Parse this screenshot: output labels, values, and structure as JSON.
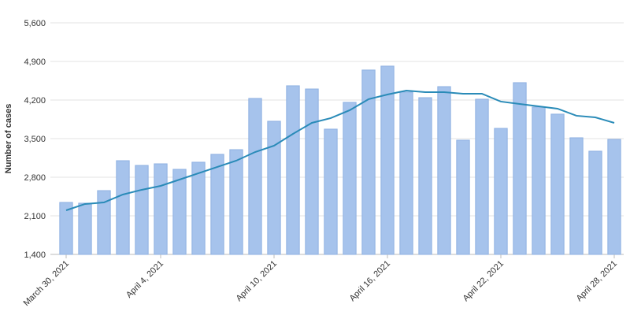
{
  "chart_data": {
    "type": "bar",
    "y_label": "Number of cases",
    "categories": [
      "March 30, 2021",
      null,
      null,
      null,
      null,
      "April 4, 2021",
      null,
      null,
      null,
      null,
      null,
      "April 10, 2021",
      null,
      null,
      null,
      null,
      null,
      "April 16, 2021",
      null,
      null,
      null,
      null,
      null,
      "April 22, 2021",
      null,
      null,
      null,
      null,
      null,
      "April 28, 2021"
    ],
    "series": [
      {
        "type": "bar",
        "color": "#a6c3ec",
        "values": [
          2343,
          2329,
          2557,
          3100,
          3014,
          3043,
          2943,
          3072,
          3215,
          3300,
          4229,
          3815,
          4458,
          4400,
          3672,
          4158,
          4744,
          4815,
          4344,
          4243,
          4443,
          3472,
          4215,
          3686,
          4515,
          4072,
          3944,
          3515,
          3272,
          3486
        ]
      },
      {
        "type": "line",
        "color": "#2a8bb8",
        "values": [
          2200,
          2315,
          2343,
          2486,
          2572,
          2643,
          2757,
          2872,
          2986,
          3100,
          3257,
          3372,
          3586,
          3786,
          3872,
          4015,
          4215,
          4300,
          4372,
          4343,
          4343,
          4315,
          4315,
          4172,
          4129,
          4086,
          4043,
          3915,
          3886,
          3786
        ]
      }
    ],
    "ylim": [
      1400,
      5600
    ],
    "yticks": [
      {
        "value": 1400,
        "label": "1,400"
      },
      {
        "value": 2100,
        "label": "2,100"
      },
      {
        "value": 2800,
        "label": "2,800"
      },
      {
        "value": 3500,
        "label": "3,500"
      },
      {
        "value": 4200,
        "label": "4,200"
      },
      {
        "value": 4900,
        "label": "4,900"
      },
      {
        "value": 5600,
        "label": "5,600"
      }
    ],
    "grid": true
  }
}
